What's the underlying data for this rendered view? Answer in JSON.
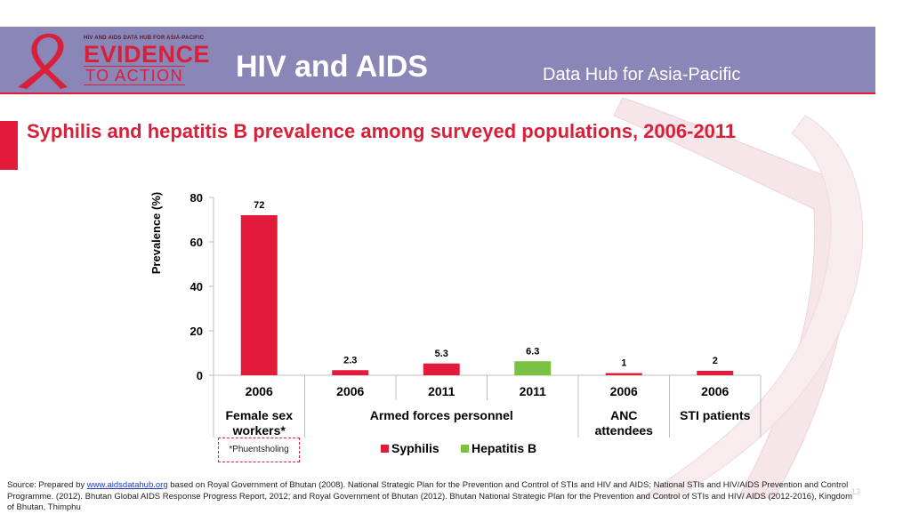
{
  "header": {
    "logo_top": "HIV AND AIDS DATA HUB FOR ASIA-PACIFIC",
    "logo_evidence": "EVIDENCE",
    "logo_action": "TO ACTION",
    "title": "HIV and AIDS",
    "subtitle": "Data Hub for Asia-Pacific"
  },
  "colors": {
    "brand_red": "#e31b3b",
    "header_bg": "#8a86b8",
    "hepatitis_green": "#7ac143"
  },
  "chart_data": {
    "type": "bar",
    "title": "Syphilis and hepatitis B prevalence among surveyed populations, 2006-2011",
    "ylabel": "Prevalence (%)",
    "xlabel": "",
    "ylim": [
      0,
      80
    ],
    "yticks": [
      "0",
      "20",
      "40",
      "60",
      "80"
    ],
    "ytick_values": [
      0,
      20,
      40,
      60,
      80
    ],
    "grid": false,
    "legend_position": "bottom",
    "legend": [
      {
        "name": "Syphilis",
        "color": "#e31b3b"
      },
      {
        "name": "Hepatitis B",
        "color": "#7ac143"
      }
    ],
    "bars": [
      {
        "year": "2006",
        "value": 72,
        "label": "72",
        "series": "Syphilis"
      },
      {
        "year": "2006",
        "value": 2.3,
        "label": "2.3",
        "series": "Syphilis"
      },
      {
        "year": "2011",
        "value": 5.3,
        "label": "5.3",
        "series": "Syphilis"
      },
      {
        "year": "2011",
        "value": 6.3,
        "label": "6.3",
        "series": "Hepatitis B"
      },
      {
        "year": "2006",
        "value": 1,
        "label": "1",
        "series": "Syphilis"
      },
      {
        "year": "2006",
        "value": 2,
        "label": "2",
        "series": "Syphilis"
      }
    ],
    "groups": [
      {
        "name": "Female sex workers*",
        "lines": [
          "Female sex",
          "workers*"
        ],
        "span": [
          0,
          0
        ]
      },
      {
        "name": "Armed forces personnel",
        "lines": [
          "Armed forces personnel"
        ],
        "span": [
          1,
          3
        ]
      },
      {
        "name": "ANC attendees",
        "lines": [
          "ANC",
          "attendees"
        ],
        "span": [
          4,
          4
        ]
      },
      {
        "name": "STI patients",
        "lines": [
          "STI patients"
        ],
        "span": [
          5,
          5
        ]
      }
    ]
  },
  "footnote": "*Phuentsholing",
  "source": {
    "prefix": "Source: Prepared by ",
    "link": "www.aidsdatahub.org",
    "rest": " based on Royal Government of Bhutan (2008). National Strategic Plan for the Prevention and Control of STIs and HIV and AIDS; National STIs and HIV/AIDS Prevention and Control Programme. (2012). Bhutan Global AIDS Response Progress Report, 2012; and Royal Government of Bhutan (2012). Bhutan National Strategic Plan for the Prevention and Control of STIs and HIV/ AIDS (2012-2016), Kingdom of Bhutan, Thimphu"
  },
  "page_number": "13"
}
